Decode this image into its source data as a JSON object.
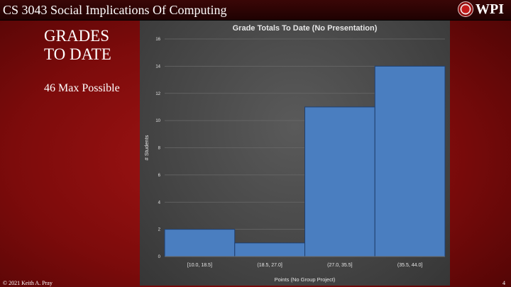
{
  "header": {
    "course_title": "CS 3043 Social Implications Of Computing",
    "logo_text": "WPI",
    "logo_icon": "wpi-seal-icon"
  },
  "slide": {
    "heading_line1": "GRADES",
    "heading_line2": "TO DATE",
    "subtext": "46 Max Possible"
  },
  "footer": {
    "copyright": "© 2021 Keith A. Pray",
    "page_number": "4"
  },
  "colors": {
    "bar_fill": "#4a7ec0",
    "bar_stroke": "#1f3f6e",
    "grid": "#6a6a6a",
    "text": "#e6e6e6"
  },
  "chart_data": {
    "type": "bar",
    "title": "Grade Totals To Date (No Presentation)",
    "xlabel": "Points (No Group Project)",
    "ylabel": "# Students",
    "categories": [
      "[10.0, 18.5]",
      "(18.5, 27.0]",
      "(27.0, 35.5]",
      "(35.5, 44.0]"
    ],
    "values": [
      2,
      1,
      11,
      14
    ],
    "ylim": [
      0,
      16
    ],
    "yticks": [
      0,
      2,
      4,
      6,
      8,
      10,
      12,
      14,
      16
    ],
    "grid": true,
    "legend": "none"
  }
}
